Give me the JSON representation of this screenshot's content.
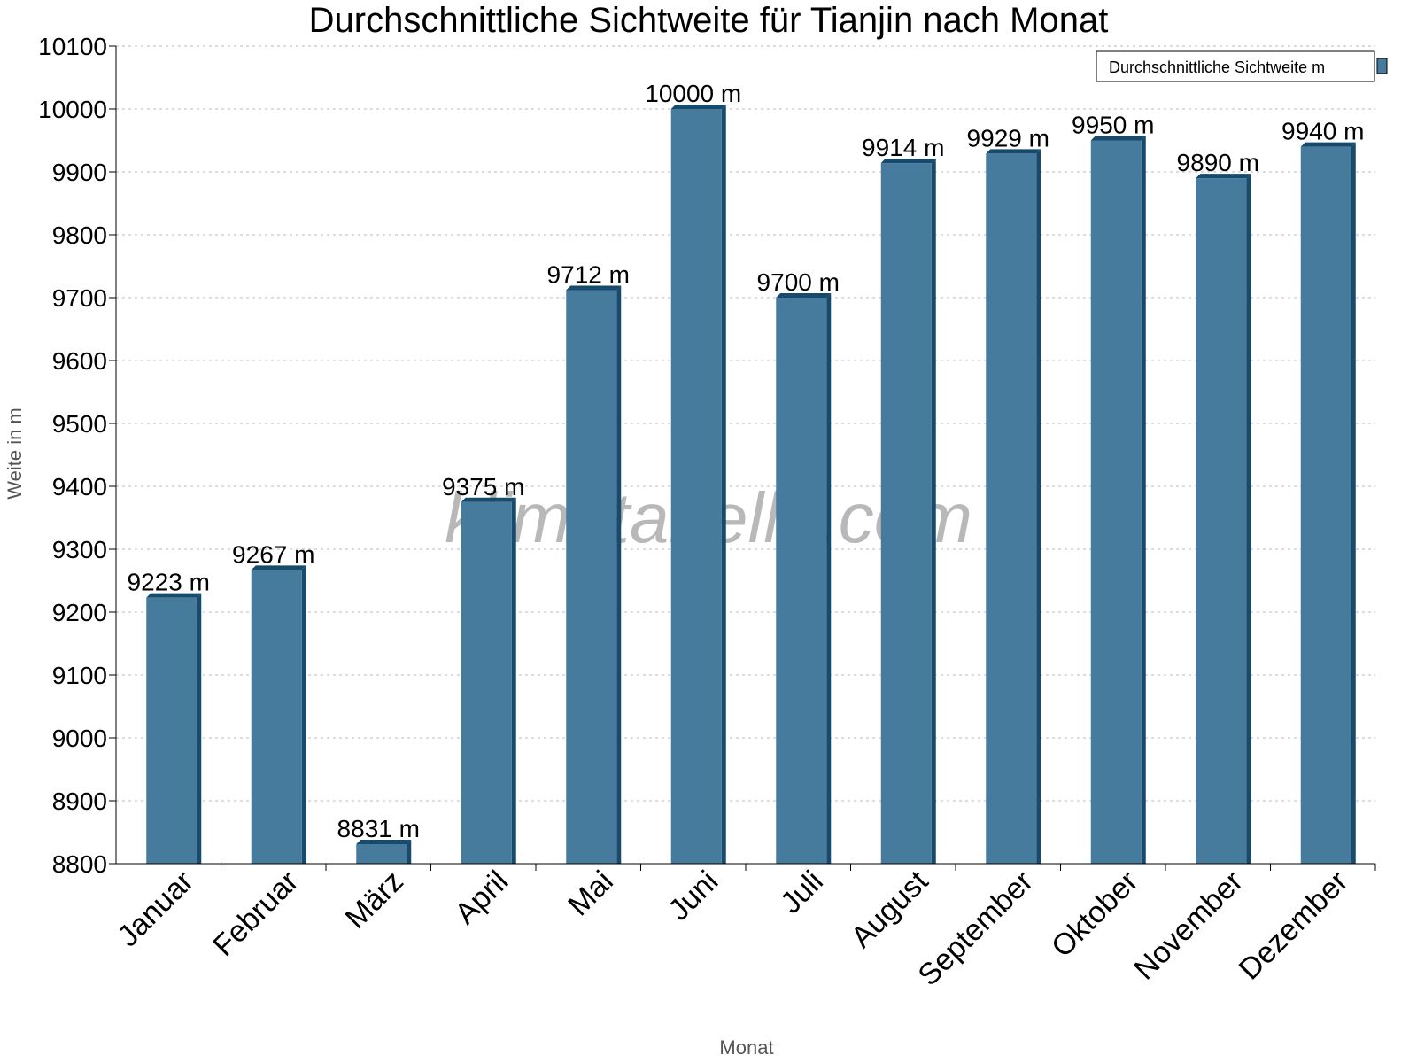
{
  "chart_data": {
    "type": "bar",
    "title": "Durchschnittliche Sichtweite für Tianjin nach Monat",
    "xlabel": "Monat",
    "ylabel": "Weite in m",
    "categories": [
      "Januar",
      "Februar",
      "März",
      "April",
      "Mai",
      "Juni",
      "Juli",
      "August",
      "September",
      "Oktober",
      "November",
      "Dezember"
    ],
    "series": [
      {
        "name": "Durchschnittliche Sichtweite m",
        "values": [
          9223,
          9267,
          8831,
          9375,
          9712,
          10000,
          9700,
          9914,
          9929,
          9950,
          9890,
          9940
        ]
      }
    ],
    "data_labels": [
      "9223 m",
      "9267 m",
      "8831 m",
      "9375 m",
      "9712 m",
      "10000 m",
      "9700 m",
      "9914 m",
      "9929 m",
      "9950 m",
      "9890 m",
      "9940 m"
    ],
    "ylim": [
      8800,
      10100
    ],
    "yticks": [
      8800,
      8900,
      9000,
      9100,
      9200,
      9300,
      9400,
      9500,
      9600,
      9700,
      9800,
      9900,
      10000,
      10100
    ],
    "grid": true,
    "legend_position": "top-right",
    "colors": {
      "bar_front": "#467b9e",
      "bar_side": "#174a6b"
    },
    "watermark": "klimatabelle.com"
  }
}
